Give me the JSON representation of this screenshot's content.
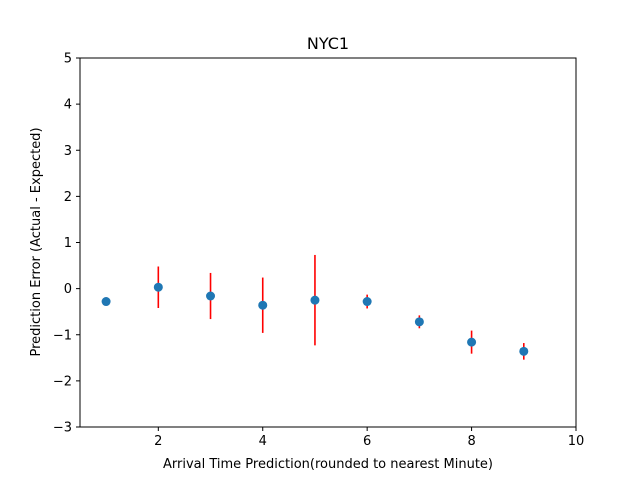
{
  "chart_data": {
    "type": "scatter",
    "title": "NYC1",
    "xlabel": "Arrival Time Prediction(rounded to nearest Minute)",
    "ylabel": "Prediction Error (Actual - Expected)",
    "xlim": [
      0.5,
      10
    ],
    "ylim": [
      -3,
      5
    ],
    "xticks": [
      2,
      4,
      6,
      8,
      10
    ],
    "yticks": [
      -3,
      -2,
      -1,
      0,
      1,
      2,
      3,
      4,
      5
    ],
    "grid": false,
    "legend": "none",
    "points": [
      {
        "x": 1,
        "y": -0.28,
        "err": 0.09
      },
      {
        "x": 2,
        "y": 0.03,
        "err": 0.45
      },
      {
        "x": 3,
        "y": -0.16,
        "err": 0.5
      },
      {
        "x": 4,
        "y": -0.36,
        "err": 0.6
      },
      {
        "x": 5,
        "y": -0.25,
        "err": 0.98
      },
      {
        "x": 6,
        "y": -0.28,
        "err": 0.15
      },
      {
        "x": 7,
        "y": -0.72,
        "err": 0.14
      },
      {
        "x": 8,
        "y": -1.16,
        "err": 0.25
      },
      {
        "x": 9,
        "y": -1.36,
        "err": 0.18
      }
    ],
    "colors": {
      "marker": "#1f77b4",
      "errorbar": "#ff0000",
      "axis": "#000000"
    }
  }
}
